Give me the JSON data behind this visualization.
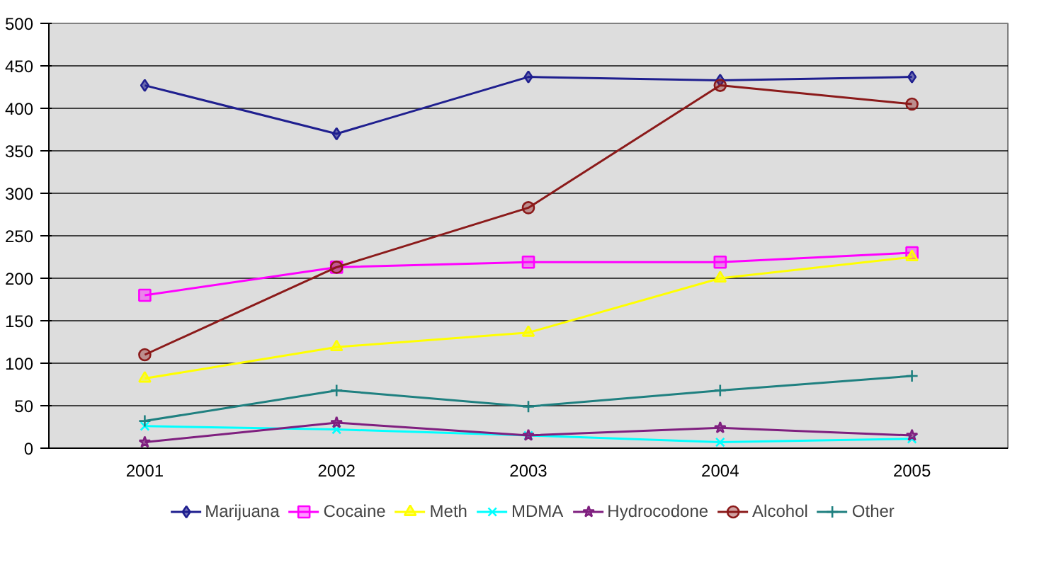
{
  "chart_data": {
    "type": "line",
    "categories": [
      "2001",
      "2002",
      "2003",
      "2004",
      "2005"
    ],
    "series": [
      {
        "name": "Marijuana",
        "color": "#1f1f8f",
        "marker": "diamond",
        "values": [
          427,
          370,
          437,
          433,
          437
        ]
      },
      {
        "name": "Cocaine",
        "color": "#ff00ff",
        "marker": "square",
        "values": [
          180,
          213,
          219,
          219,
          230
        ]
      },
      {
        "name": "Meth",
        "color": "#ffff00",
        "marker": "triangle",
        "values": [
          82,
          119,
          136,
          200,
          225
        ]
      },
      {
        "name": "MDMA",
        "color": "#00ffff",
        "marker": "cross",
        "values": [
          26,
          22,
          15,
          7,
          11
        ]
      },
      {
        "name": "Hydrocodone",
        "color": "#7f1f7f",
        "marker": "star",
        "values": [
          7,
          30,
          15,
          24,
          15
        ]
      },
      {
        "name": "Alcohol",
        "color": "#8b1a1a",
        "marker": "circle",
        "values": [
          110,
          213,
          283,
          427,
          405
        ]
      },
      {
        "name": "Other",
        "color": "#1f8080",
        "marker": "plus",
        "values": [
          32,
          68,
          49,
          68,
          85
        ]
      }
    ],
    "ylim": [
      0,
      500
    ],
    "yticks": [
      0,
      50,
      100,
      150,
      200,
      250,
      300,
      350,
      400,
      450,
      500
    ],
    "grid": "y",
    "legend": "bottom"
  }
}
